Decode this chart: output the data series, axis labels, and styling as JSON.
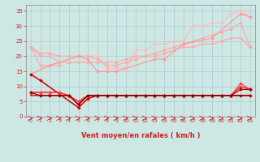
{
  "background_color": "#cde8e4",
  "grid_color": "#aacccc",
  "xlabel": "Vent moyen/en rafales ( km/h )",
  "xlim": [
    -0.5,
    23.5
  ],
  "ylim": [
    0,
    37
  ],
  "yticks": [
    0,
    5,
    10,
    15,
    20,
    25,
    30,
    35
  ],
  "xticks": [
    0,
    1,
    2,
    3,
    4,
    5,
    6,
    7,
    8,
    9,
    10,
    11,
    12,
    13,
    14,
    15,
    16,
    17,
    18,
    19,
    20,
    21,
    22,
    23
  ],
  "series": [
    {
      "x": [
        0,
        2,
        5,
        6,
        7,
        8,
        9,
        10,
        11,
        12,
        13,
        14,
        15,
        16,
        17,
        18,
        19,
        20,
        21,
        22,
        23
      ],
      "y": [
        14,
        17,
        20,
        20,
        20,
        16,
        16,
        16,
        22,
        22,
        24,
        24,
        25,
        25,
        30,
        30,
        31,
        31,
        34,
        35,
        33
      ],
      "color": "#ffbbbb",
      "linewidth": 0.9,
      "marker": "D",
      "markersize": 2.0
    },
    {
      "x": [
        0,
        1,
        2,
        3,
        4,
        5,
        6,
        7,
        8,
        9,
        10,
        11,
        12,
        13,
        14,
        15,
        16,
        17,
        18,
        19,
        20,
        21,
        22,
        23
      ],
      "y": [
        23,
        20,
        20,
        18,
        18,
        18,
        18,
        18,
        18,
        18,
        19,
        20,
        20,
        21,
        22,
        23,
        24,
        25,
        26,
        27,
        28,
        29,
        31,
        23
      ],
      "color": "#ffaaaa",
      "linewidth": 0.9,
      "marker": "D",
      "markersize": 2.0
    },
    {
      "x": [
        0,
        1,
        2,
        3,
        4,
        5,
        6,
        7,
        8,
        9,
        10,
        11,
        12,
        13,
        14,
        15,
        16,
        17,
        18,
        19,
        20,
        21,
        22,
        23
      ],
      "y": [
        23,
        21,
        21,
        20,
        20,
        20,
        20,
        19,
        17,
        17,
        18,
        19,
        20,
        20,
        21,
        22,
        23,
        23,
        24,
        24,
        25,
        26,
        26,
        23
      ],
      "color": "#ffaaaa",
      "linewidth": 0.9,
      "marker": "D",
      "markersize": 2.0
    },
    {
      "x": [
        0,
        1,
        2,
        3,
        4,
        5,
        6,
        7,
        8,
        9,
        10,
        11,
        12,
        13,
        14,
        15,
        16,
        17,
        18,
        19,
        20,
        21,
        22,
        23
      ],
      "y": [
        23,
        17,
        17,
        17,
        null,
        20,
        null,
        null,
        null,
        null,
        null,
        null,
        null,
        null,
        null,
        null,
        null,
        null,
        null,
        null,
        null,
        null,
        null,
        23
      ],
      "color": "#ffaaaa",
      "linewidth": 0.9,
      "marker": "D",
      "markersize": 2.0
    },
    {
      "x": [
        0,
        2,
        5,
        6,
        7,
        8,
        9,
        13,
        14,
        16,
        19,
        22,
        23
      ],
      "y": [
        14,
        17,
        20,
        19,
        15,
        15,
        15,
        19,
        19,
        24,
        26,
        34,
        33
      ],
      "color": "#ff9999",
      "linewidth": 0.9,
      "marker": "D",
      "markersize": 2.0
    },
    {
      "x": [
        0,
        1,
        5,
        6,
        7,
        8,
        9,
        10,
        11,
        12,
        13,
        14,
        15,
        16,
        17,
        18,
        19,
        20,
        21,
        22,
        23
      ],
      "y": [
        14,
        12,
        3,
        6,
        7,
        7,
        7,
        7,
        7,
        7,
        7,
        7,
        7,
        7,
        7,
        7,
        7,
        7,
        7,
        7,
        7
      ],
      "color": "#cc0000",
      "linewidth": 1.1,
      "marker": "D",
      "markersize": 2.0
    },
    {
      "x": [
        0,
        1,
        2,
        3,
        4,
        5,
        6,
        7,
        8,
        9,
        10,
        11,
        12,
        13,
        14,
        15,
        16,
        17,
        18,
        19,
        20,
        21,
        22,
        23
      ],
      "y": [
        8,
        8,
        8,
        8,
        7,
        5,
        7,
        7,
        7,
        7,
        7,
        7,
        7,
        7,
        7,
        7,
        7,
        7,
        7,
        7,
        7,
        7,
        10,
        9
      ],
      "color": "#ff2020",
      "linewidth": 1.0,
      "marker": "^",
      "markersize": 2.5
    },
    {
      "x": [
        0,
        1,
        2,
        3,
        4,
        5,
        6,
        7,
        8,
        9,
        10,
        11,
        12,
        13,
        14,
        15,
        16,
        17,
        18,
        19,
        20,
        21,
        22,
        23
      ],
      "y": [
        8,
        8,
        8,
        8,
        7,
        5,
        7,
        7,
        7,
        7,
        7,
        7,
        7,
        7,
        7,
        7,
        7,
        7,
        7,
        7,
        7,
        7,
        11,
        9
      ],
      "color": "#ff4040",
      "linewidth": 0.9,
      "marker": "D",
      "markersize": 2.0
    },
    {
      "x": [
        0,
        1,
        2,
        3,
        4,
        5,
        6,
        7,
        8,
        9,
        10,
        11,
        12,
        13,
        14,
        15,
        16,
        17,
        18,
        19,
        20,
        21,
        22,
        23
      ],
      "y": [
        8,
        7,
        7,
        7,
        7,
        4,
        7,
        7,
        7,
        7,
        7,
        7,
        7,
        7,
        7,
        7,
        7,
        7,
        7,
        7,
        7,
        7,
        9,
        9
      ],
      "color": "#aa0000",
      "linewidth": 0.9,
      "marker": "D",
      "markersize": 2.0
    },
    {
      "x": [
        0,
        1,
        2,
        3,
        4,
        5,
        6,
        7,
        8,
        9,
        10,
        11,
        12,
        13,
        14,
        15,
        16,
        17,
        18,
        19,
        20,
        21,
        22,
        23
      ],
      "y": [
        7,
        7,
        7,
        7,
        7,
        4,
        7,
        7,
        7,
        7,
        7,
        7,
        7,
        7,
        7,
        7,
        7,
        7,
        7,
        7,
        7,
        7,
        7,
        7
      ],
      "color": "#880000",
      "linewidth": 0.9,
      "marker": null,
      "markersize": 0
    }
  ],
  "arrow_color": "#dd2222",
  "tick_color": "#cc2222",
  "label_color": "#cc2222"
}
